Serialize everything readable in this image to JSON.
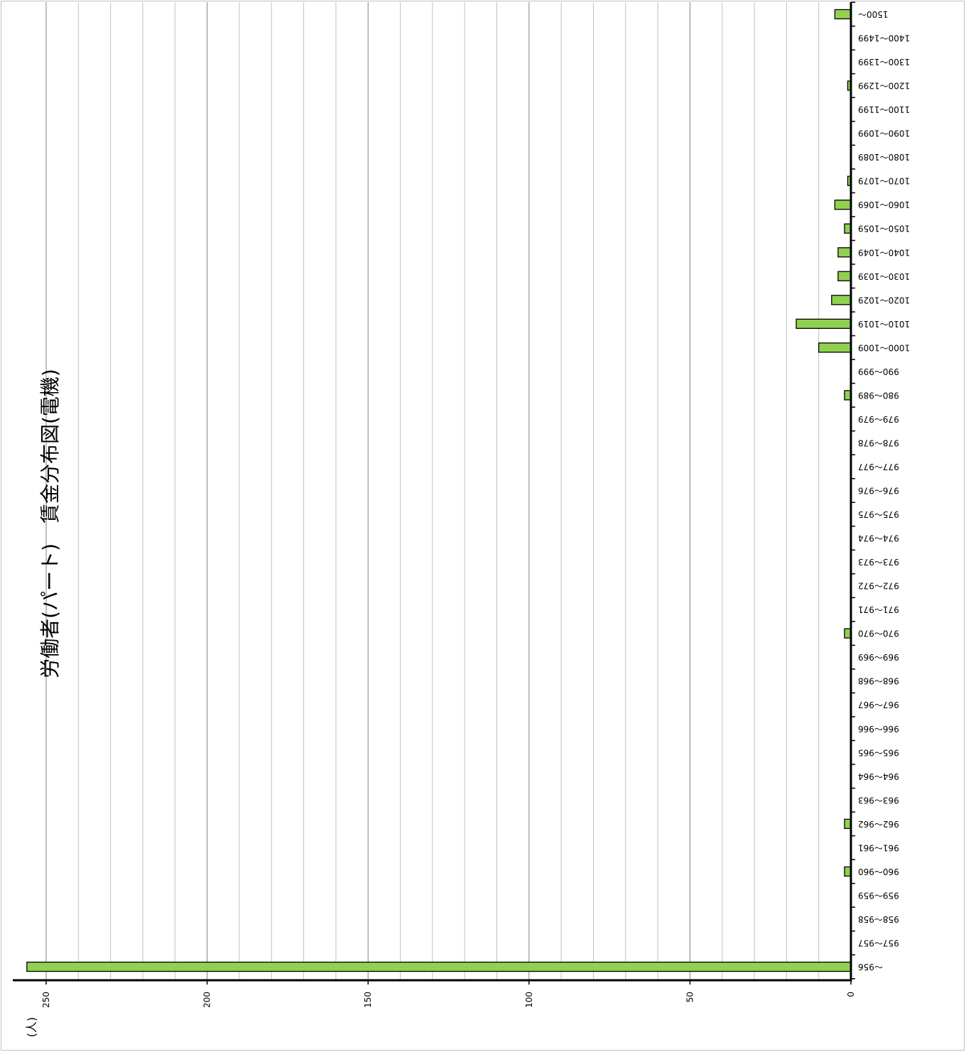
{
  "chart_data": {
    "type": "bar",
    "orientation": "horizontal",
    "rotated": "180deg",
    "title": "労働者(パート)　賃金分布図(電機)",
    "ylabel": "(人)",
    "xlim": [
      0,
      255
    ],
    "ticks": [
      0,
      50,
      100,
      150,
      200,
      250
    ],
    "grid": true,
    "bar_color": "#92d050",
    "categories": [
      "～956",
      "957～957",
      "958～958",
      "959～959",
      "960～960",
      "961～961",
      "962～962",
      "963～963",
      "964～964",
      "965～965",
      "966～966",
      "967～967",
      "968～968",
      "969～969",
      "970～970",
      "971～971",
      "972～972",
      "973～973",
      "974～974",
      "975～975",
      "976～976",
      "977～977",
      "978～978",
      "979～979",
      "980～989",
      "990～999",
      "1000～1009",
      "1010～1019",
      "1020～1029",
      "1030～1039",
      "1040～1049",
      "1050～1059",
      "1060～1069",
      "1070～1079",
      "1080～1089",
      "1090～1099",
      "1100～1199",
      "1200～1299",
      "1300～1399",
      "1400～1499",
      "1500～"
    ],
    "values": [
      256,
      0,
      0,
      0,
      2,
      0,
      2,
      0,
      0,
      0,
      0,
      0,
      0,
      0,
      2,
      0,
      0,
      0,
      0,
      0,
      0,
      0,
      0,
      0,
      2,
      0,
      10,
      17,
      6,
      4,
      4,
      2,
      5,
      1,
      0,
      0,
      0,
      1,
      0,
      0,
      5
    ]
  }
}
